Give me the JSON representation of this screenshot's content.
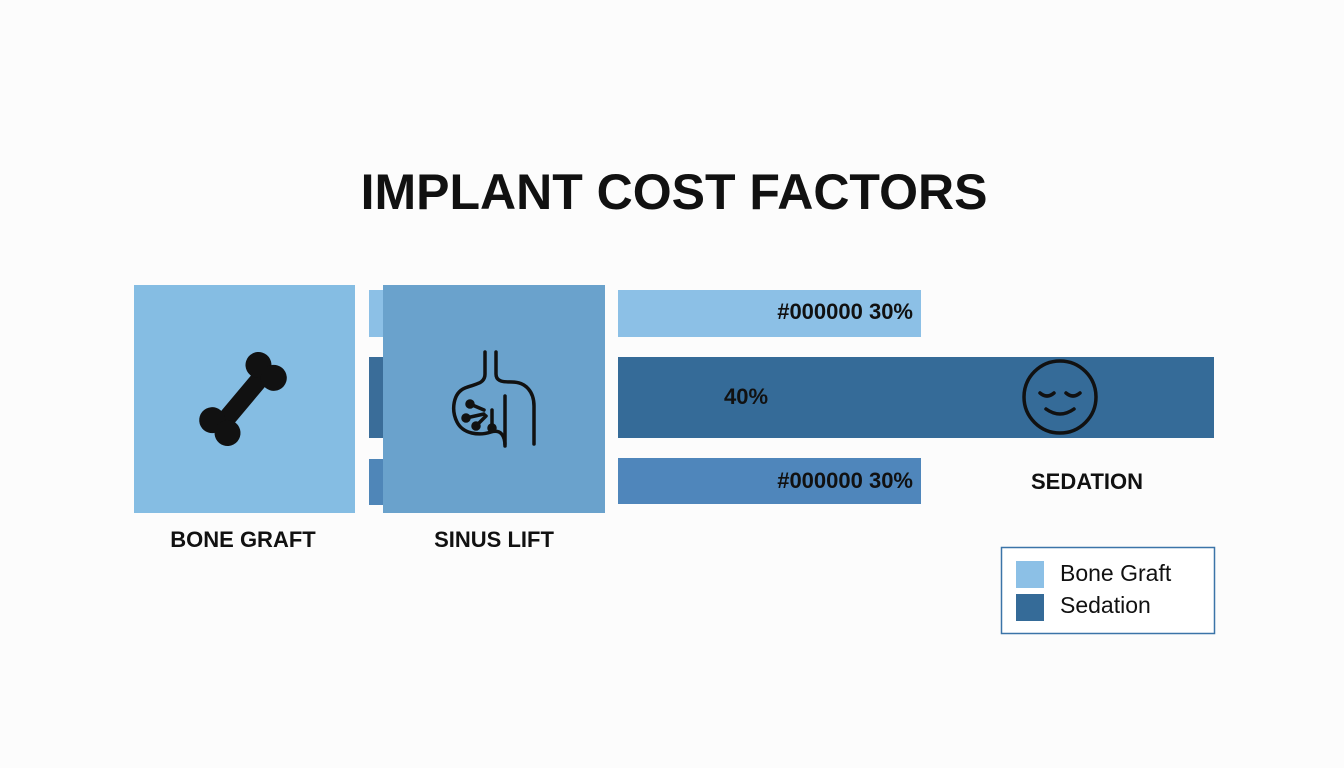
{
  "title": "IMPLANT COST FACTORS",
  "cards": [
    {
      "label": "BONE GRAFT"
    },
    {
      "label": "SINUS LIFT"
    }
  ],
  "bars": [
    {
      "label": "#000000 30%"
    },
    {
      "label": "40%"
    },
    {
      "label": "#000000 30%"
    }
  ],
  "sedation_label": "SEDATION",
  "legend": [
    {
      "label": "Bone Graft"
    },
    {
      "label": "Sedation"
    }
  ]
}
